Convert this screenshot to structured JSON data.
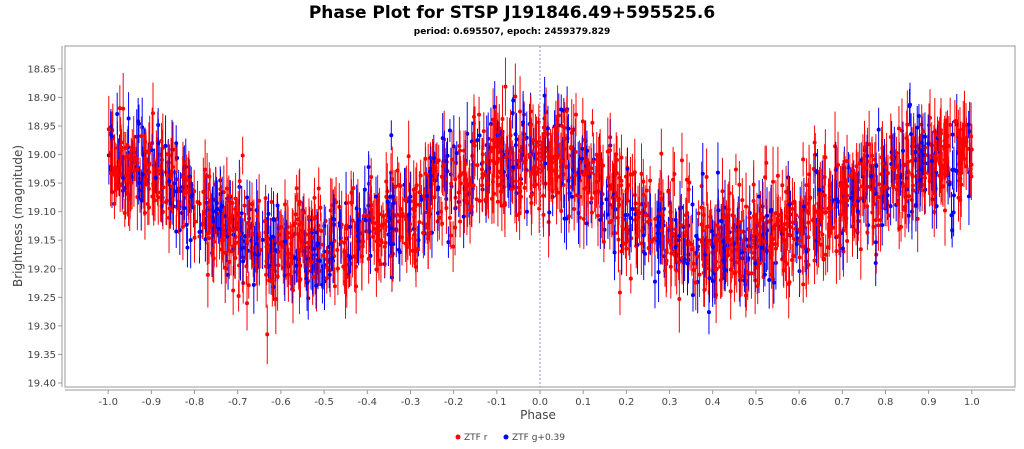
{
  "chart_data": {
    "type": "scatter",
    "title": "Phase Plot for STSP J191846.49+595525.6",
    "subtitle": "period: 0.695507, epoch: 2459379.829",
    "xlabel": "Phase",
    "ylabel": "Brightness (magnitude)",
    "xlim": [
      -1.1,
      1.1
    ],
    "ylim": [
      18.81,
      19.407
    ],
    "y_inverted": true,
    "grid": false,
    "reference_line_x": 0.0,
    "x_ticks": [
      "-1.0",
      "-0.9",
      "-0.8",
      "-0.7",
      "-0.6",
      "-0.5",
      "-0.4",
      "-0.3",
      "-0.2",
      "-0.1",
      "0.0",
      "0.1",
      "0.2",
      "0.3",
      "0.4",
      "0.5",
      "0.6",
      "0.7",
      "0.8",
      "0.9",
      "1.0"
    ],
    "y_ticks": [
      "18.85",
      "18.90",
      "18.95",
      "19.00",
      "19.05",
      "19.10",
      "19.15",
      "19.20",
      "19.25",
      "19.30",
      "19.35",
      "19.40"
    ],
    "legend_position": "bottom-center",
    "mean_curve": {
      "phase": [
        -1.0,
        -0.9,
        -0.8,
        -0.7,
        -0.6,
        -0.5,
        -0.4,
        -0.3,
        -0.2,
        -0.1,
        0.0,
        0.1,
        0.2,
        0.3,
        0.4,
        0.5,
        0.6,
        0.7,
        0.8,
        0.9,
        1.0
      ],
      "magnitude": [
        19.01,
        19.03,
        19.09,
        19.14,
        19.16,
        19.16,
        19.13,
        19.09,
        19.05,
        19.01,
        19.0,
        19.03,
        19.09,
        19.14,
        19.16,
        19.16,
        19.13,
        19.09,
        19.05,
        19.01,
        19.01
      ]
    },
    "series": [
      {
        "name": "ZTF r",
        "color": "#ff0000",
        "n_points": 1500,
        "scatter_mag": 0.045,
        "typical_error": 0.045
      },
      {
        "name": "ZTF g+0.39",
        "color": "#0000ff",
        "n_points": 650,
        "scatter_mag": 0.045,
        "typical_error": 0.04
      }
    ]
  }
}
